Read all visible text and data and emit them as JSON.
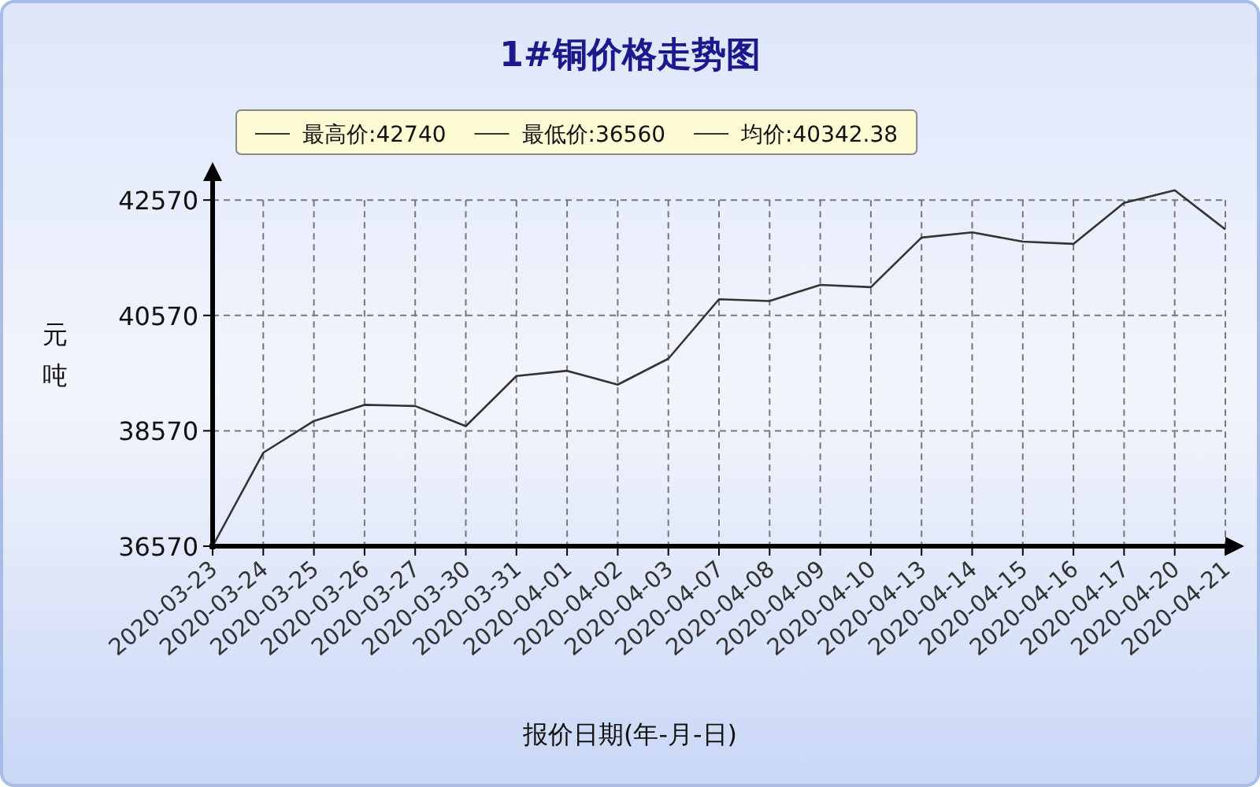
{
  "chart_data": {
    "type": "line",
    "title": "1#铜价格走势图",
    "xlabel": "报价日期(年-月-日)",
    "ylabel": "元吨",
    "annotations": [
      "最高价:42740",
      "最低价:36560",
      "均价:40342.38"
    ],
    "categories": [
      "2020-03-23",
      "2020-03-24",
      "2020-03-25",
      "2020-03-26",
      "2020-03-27",
      "2020-03-30",
      "2020-03-31",
      "2020-04-01",
      "2020-04-02",
      "2020-04-03",
      "2020-04-07",
      "2020-04-08",
      "2020-04-09",
      "2020-04-10",
      "2020-04-13",
      "2020-04-14",
      "2020-04-15",
      "2020-04-16",
      "2020-04-17",
      "2020-04-20",
      "2020-04-21"
    ],
    "series": [
      {
        "color": "#333333",
        "values": [
          36570,
          38190,
          38740,
          39020,
          39000,
          38650,
          39520,
          39610,
          39370,
          39820,
          40850,
          40820,
          41100,
          41060,
          41920,
          42010,
          41850,
          41810,
          42520,
          42740,
          42060
        ]
      }
    ],
    "ylim": [
      36570,
      42900
    ],
    "yticks": [
      36570,
      38570,
      40570,
      42570
    ],
    "grid": true,
    "marker": "none",
    "line_style": "solid"
  }
}
